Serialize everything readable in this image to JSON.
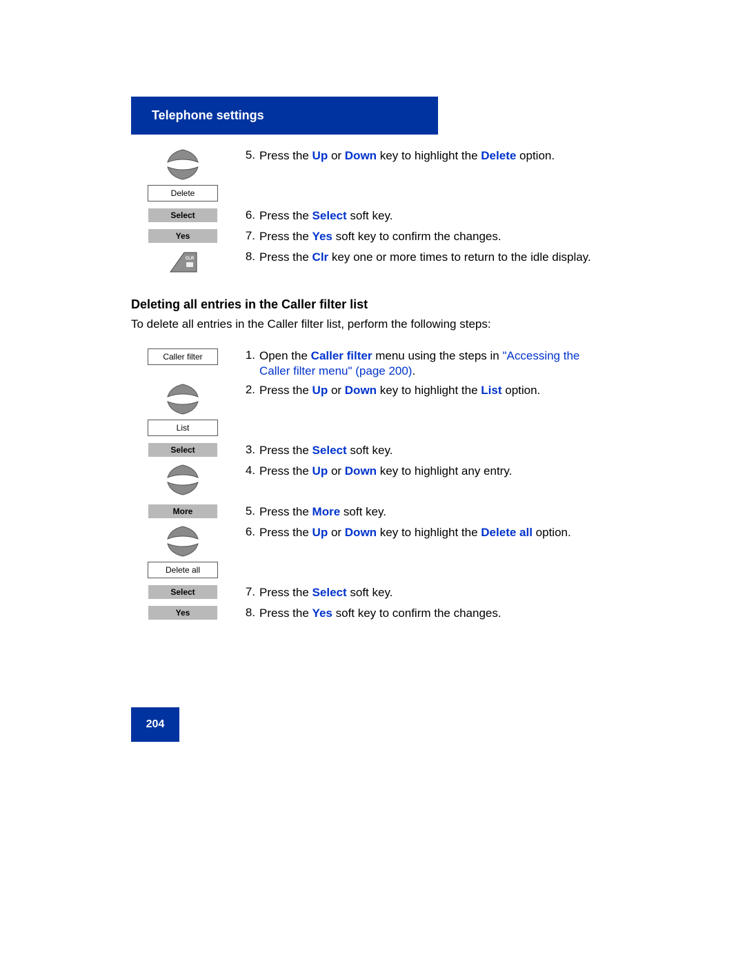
{
  "header": {
    "title": "Telephone settings"
  },
  "page_number": "204",
  "colors": {
    "brand_blue": "#0033a0",
    "text_blue": "#0033cc",
    "softkey_grey": "#b9b9b9",
    "arrow_fill": "#8a8a8a",
    "arrow_stroke": "#555555",
    "clr_fill": "#8f8f8f"
  },
  "top_steps": [
    {
      "num": "5.",
      "segments": [
        {
          "t": "Press the "
        },
        {
          "t": "Up",
          "style": "blue-bold"
        },
        {
          "t": " or "
        },
        {
          "t": "Down",
          "style": "blue-bold"
        },
        {
          "t": " key to highlight the "
        },
        {
          "t": "Delete",
          "style": "blue-bold"
        },
        {
          "t": " option."
        }
      ],
      "icon": {
        "type": "arrows_with_box",
        "box_label": "Delete"
      }
    },
    {
      "num": "6.",
      "segments": [
        {
          "t": "Press the "
        },
        {
          "t": "Select",
          "style": "blue-bold"
        },
        {
          "t": " soft key."
        }
      ],
      "icon": {
        "type": "grey_softkey",
        "label": "Select"
      }
    },
    {
      "num": "7.",
      "segments": [
        {
          "t": "Press the "
        },
        {
          "t": "Yes",
          "style": "blue-bold"
        },
        {
          "t": " soft key to confirm the changes."
        }
      ],
      "icon": {
        "type": "grey_softkey",
        "label": "Yes"
      }
    },
    {
      "num": "8.",
      "segments": [
        {
          "t": "Press the "
        },
        {
          "t": "Clr",
          "style": "blue-bold"
        },
        {
          "t": " key one or more times to return to the idle display."
        }
      ],
      "icon": {
        "type": "clr_key"
      }
    }
  ],
  "section": {
    "heading": "Deleting all entries in the Caller filter list",
    "intro": "To delete all entries in the Caller filter list, perform the following steps:"
  },
  "bottom_steps": [
    {
      "num": "1.",
      "segments": [
        {
          "t": "Open the "
        },
        {
          "t": "Caller filter",
          "style": "blue-bold"
        },
        {
          "t": " menu using the steps in "
        },
        {
          "t": "\"Accessing the Caller filter menu\" (page 200)",
          "style": "link-blue"
        },
        {
          "t": "."
        }
      ],
      "icon": {
        "type": "white_box",
        "label": "Caller filter"
      }
    },
    {
      "num": "2.",
      "segments": [
        {
          "t": "Press the "
        },
        {
          "t": "Up",
          "style": "blue-bold"
        },
        {
          "t": " or "
        },
        {
          "t": "Down",
          "style": "blue-bold"
        },
        {
          "t": " key to highlight the "
        },
        {
          "t": "List",
          "style": "blue-bold"
        },
        {
          "t": " option."
        }
      ],
      "icon": {
        "type": "arrows_with_box",
        "box_label": "List"
      }
    },
    {
      "num": "3.",
      "segments": [
        {
          "t": "Press the "
        },
        {
          "t": "Select",
          "style": "blue-bold"
        },
        {
          "t": " soft key."
        }
      ],
      "icon": {
        "type": "grey_softkey",
        "label": "Select"
      }
    },
    {
      "num": "4.",
      "segments": [
        {
          "t": "Press the "
        },
        {
          "t": "Up",
          "style": "blue-bold"
        },
        {
          "t": " or "
        },
        {
          "t": "Down",
          "style": "blue-bold"
        },
        {
          "t": " key to highlight any entry."
        }
      ],
      "icon": {
        "type": "arrows_only"
      }
    },
    {
      "num": "5.",
      "segments": [
        {
          "t": "Press the "
        },
        {
          "t": "More",
          "style": "blue-bold"
        },
        {
          "t": " soft key."
        }
      ],
      "icon": {
        "type": "grey_softkey",
        "label": "More"
      }
    },
    {
      "num": "6.",
      "segments": [
        {
          "t": "Press the "
        },
        {
          "t": "Up",
          "style": "blue-bold"
        },
        {
          "t": " or "
        },
        {
          "t": "Down",
          "style": "blue-bold"
        },
        {
          "t": " key to highlight the "
        },
        {
          "t": "Delete all",
          "style": "blue-bold"
        },
        {
          "t": " option."
        }
      ],
      "icon": {
        "type": "arrows_with_box",
        "box_label": "Delete all"
      }
    },
    {
      "num": "7.",
      "segments": [
        {
          "t": "Press the "
        },
        {
          "t": "Select",
          "style": "blue-bold"
        },
        {
          "t": " soft key."
        }
      ],
      "icon": {
        "type": "grey_softkey",
        "label": "Select"
      }
    },
    {
      "num": "8.",
      "segments": [
        {
          "t": "Press the "
        },
        {
          "t": "Yes",
          "style": "blue-bold"
        },
        {
          "t": " soft key to confirm the changes."
        }
      ],
      "icon": {
        "type": "grey_softkey",
        "label": "Yes"
      }
    }
  ]
}
